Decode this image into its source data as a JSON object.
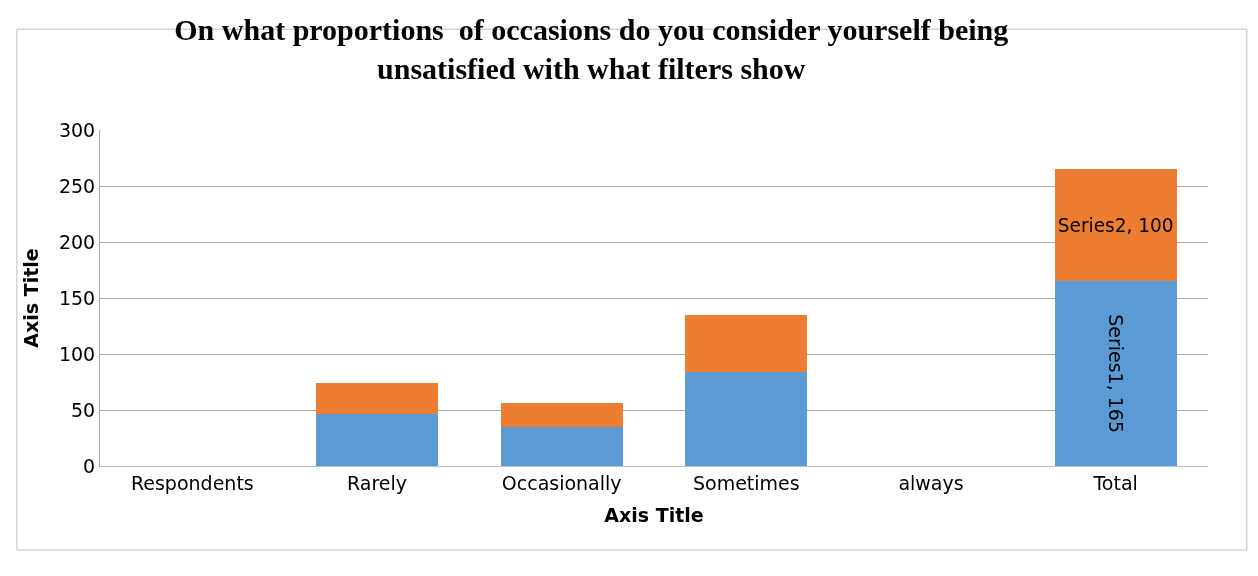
{
  "chart_data": {
    "type": "bar",
    "title": "On what proportions  of occasions do you consider yourself being\nunsatisfied with what filters show",
    "xlabel": "Axis Title",
    "ylabel": "Axis Title",
    "categories": [
      "Respondents",
      "Rarely",
      "Occasionally",
      "Sometimes",
      "always",
      "Total"
    ],
    "stacked": true,
    "series": [
      {
        "color": "#5b9bd5",
        "values": [
          null,
          46,
          35,
          84,
          null,
          165
        ],
        "value_labels": [
          null,
          null,
          null,
          null,
          null,
          "Series1, 165"
        ]
      },
      {
        "color": "#ed7d31",
        "values": [
          null,
          28,
          21,
          51,
          null,
          100
        ],
        "value_labels": [
          null,
          null,
          null,
          null,
          null,
          "Series2, 100"
        ]
      }
    ],
    "ylim": [
      0,
      300
    ],
    "yticks": [
      0,
      50,
      100,
      150,
      200,
      250,
      300
    ],
    "grid": "y",
    "legend": false
  }
}
